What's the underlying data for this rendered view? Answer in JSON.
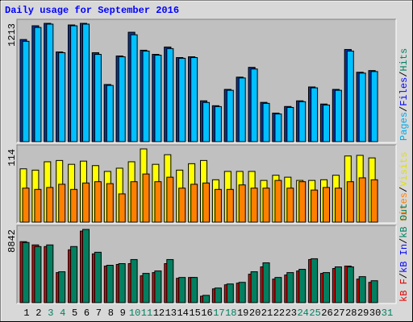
{
  "chart_data": [
    {
      "type": "bar",
      "title": "Daily usage for September 2016",
      "ylim": [
        0,
        1213
      ],
      "yticks": [
        1213
      ],
      "legend": [
        {
          "name": "Pages",
          "color": "#00a8e8"
        },
        {
          "name": "Files",
          "color": "#0000ff"
        },
        {
          "name": "Hits",
          "color": "#008060"
        }
      ],
      "legend_separator": "/",
      "series": [
        {
          "name": "Hits",
          "color": "#008060",
          "values": [
            1046,
            1188,
            1213,
            920,
            1196,
            1213,
            912,
            586,
            878,
            1121,
            937,
            895,
            970,
            862,
            870,
            418,
            368,
            535,
            661,
            761,
            402,
            293,
            360,
            418,
            561,
            385,
            535,
            945,
            711,
            728,
            null
          ]
        },
        {
          "name": "Files",
          "color": "#0038b0",
          "values": [
            1046,
            1188,
            1213,
            920,
            1196,
            1213,
            912,
            586,
            878,
            1121,
            937,
            895,
            970,
            862,
            870,
            418,
            368,
            535,
            661,
            761,
            402,
            293,
            360,
            418,
            561,
            385,
            535,
            945,
            711,
            728,
            null
          ]
        },
        {
          "name": "Pages",
          "color": "#00c0ff",
          "values": [
            1029,
            1171,
            1205,
            912,
            1188,
            1205,
            895,
            577,
            870,
            1096,
            929,
            887,
            954,
            855,
            862,
            402,
            360,
            527,
            653,
            745,
            393,
            284,
            351,
            410,
            552,
            376,
            527,
            929,
            703,
            719,
            null
          ]
        }
      ]
    },
    {
      "type": "bar",
      "ylim": [
        0,
        114
      ],
      "yticks": [
        114
      ],
      "legend": [
        {
          "name": "Sites",
          "color": "#ff8000"
        },
        {
          "name": "Visits",
          "color": "#e0e000"
        }
      ],
      "legend_separator": "/",
      "series": [
        {
          "name": "Visits",
          "color": "#ffff00",
          "values": [
            83,
            81,
            94,
            96,
            90,
            95,
            88,
            79,
            84,
            94,
            114,
            90,
            105,
            81,
            91,
            96,
            66,
            79,
            79,
            79,
            65,
            73,
            70,
            65,
            65,
            66,
            73,
            103,
            104,
            100,
            null
          ]
        },
        {
          "name": "Sites",
          "color": "#ff8000",
          "values": [
            53,
            51,
            54,
            59,
            51,
            61,
            63,
            60,
            44,
            63,
            75,
            63,
            70,
            53,
            59,
            61,
            51,
            51,
            58,
            53,
            53,
            65,
            53,
            63,
            50,
            54,
            53,
            63,
            69,
            66,
            null
          ]
        }
      ]
    },
    {
      "type": "bar",
      "ylim": [
        0,
        8842
      ],
      "yticks": [
        8842
      ],
      "legend": [
        {
          "name": "kB F",
          "color": "#e00000"
        },
        {
          "name": "kB In",
          "color": "#0000ff"
        },
        {
          "name": "kB Out",
          "color": "#008060"
        }
      ],
      "legend_separator": "/",
      "categories": [
        "1",
        "2",
        "3",
        "4",
        "5",
        "6",
        "7",
        "8",
        "9",
        "10",
        "11",
        "12",
        "13",
        "14",
        "15",
        "16",
        "17",
        "18",
        "19",
        "20",
        "21",
        "22",
        "23",
        "24",
        "25",
        "26",
        "27",
        "28",
        "29",
        "30",
        "31"
      ],
      "category_colors": [
        "#000000",
        "#000000",
        "#008060",
        "#008060",
        "#000000",
        "#000000",
        "#000000",
        "#000000",
        "#000000",
        "#008060",
        "#008060",
        "#000000",
        "#000000",
        "#000000",
        "#000000",
        "#000000",
        "#008060",
        "#008060",
        "#000000",
        "#000000",
        "#000000",
        "#000000",
        "#000000",
        "#008060",
        "#008060",
        "#000000",
        "#000000",
        "#000000",
        "#000000",
        "#000000",
        "#008060"
      ],
      "series": [
        {
          "name": "kB F",
          "color": "#e00000",
          "values": [
            7365,
            6972,
            6776,
            3633,
            6383,
            8642,
            5892,
            4419,
            4615,
            4714,
            3241,
            3633,
            4714,
            2946,
            3044,
            786,
            1669,
            2160,
            2357,
            3437,
            4321,
            2848,
            3339,
            3830,
            5205,
            3535,
            4124,
            4419,
            2848,
            2455,
            null
          ]
        },
        {
          "name": "kB Out",
          "color": "#008060",
          "values": [
            7267,
            6776,
            6972,
            3732,
            6776,
            8842,
            6088,
            4517,
            4714,
            5205,
            3535,
            3830,
            5205,
            3044,
            3044,
            884,
            1768,
            2259,
            2455,
            3732,
            4812,
            3044,
            3633,
            4026,
            5303,
            3633,
            4321,
            4321,
            3142,
            2651,
            null
          ]
        }
      ]
    }
  ]
}
